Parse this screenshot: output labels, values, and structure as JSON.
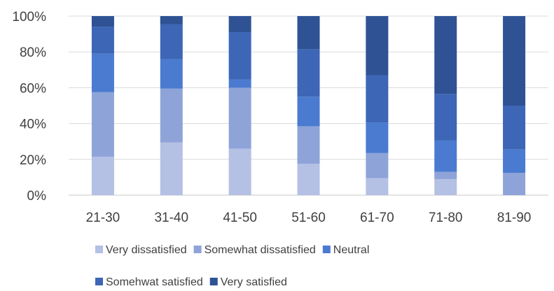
{
  "chart_data": {
    "type": "bar",
    "stacked": true,
    "normalized": true,
    "title": "",
    "xlabel": "",
    "ylabel": "",
    "ylim": [
      0,
      100
    ],
    "y_ticks": [
      "0%",
      "20%",
      "40%",
      "60%",
      "80%",
      "100%"
    ],
    "grid": true,
    "legend_position": "bottom",
    "categories": [
      "21-30",
      "31-40",
      "41-50",
      "51-60",
      "61-70",
      "71-80",
      "81-90"
    ],
    "series": [
      {
        "name": "Very dissatisfied",
        "color": "#B4C0E4",
        "values": [
          21.5,
          29.5,
          26,
          17.5,
          9.5,
          9,
          0
        ]
      },
      {
        "name": "Somewhat dissatisfied",
        "color": "#8EA3D8",
        "values": [
          36,
          30,
          34,
          21,
          14,
          4,
          12.5
        ]
      },
      {
        "name": "Neutral",
        "color": "#4A7BD0",
        "values": [
          21.5,
          16.5,
          4.5,
          16.5,
          17,
          17.5,
          13
        ]
      },
      {
        "name": "Somehwat satisfied",
        "color": "#3D66B6",
        "values": [
          15,
          19.5,
          26.5,
          26.5,
          26.5,
          26,
          24.5
        ]
      },
      {
        "name": "Very satisfied",
        "color": "#2E5294",
        "values": [
          6,
          4.5,
          9,
          18.5,
          33,
          43.5,
          50
        ]
      }
    ]
  }
}
